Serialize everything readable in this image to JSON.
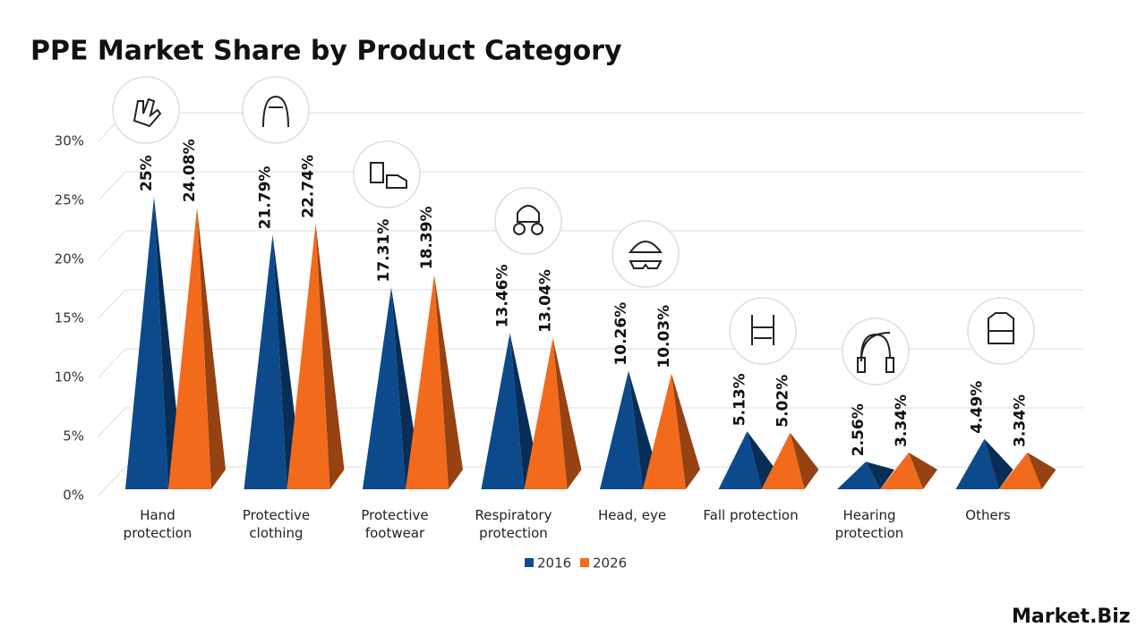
{
  "chart_data": {
    "type": "pyramid-bar",
    "title": "PPE Market Share by Product Category",
    "categories": [
      "Hand\nprotection",
      "Protective\nclothing",
      "Protective\nfootwear",
      "Respiratory\nprotection",
      "Head, eye",
      "Fall protection",
      "Hearing\nprotection",
      "Others"
    ],
    "series": [
      {
        "name": "2016",
        "color": "#0d4a8c",
        "values": [
          25,
          21.79,
          17.31,
          13.46,
          10.26,
          5.13,
          2.56,
          4.49
        ],
        "value_labels": [
          "25%",
          "21.79%",
          "17.31%",
          "13.46%",
          "10.26%",
          "5.13%",
          "2.56%",
          "4.49%"
        ]
      },
      {
        "name": "2026",
        "color": "#f26b1d",
        "values": [
          24.08,
          22.74,
          18.39,
          13.04,
          10.03,
          5.02,
          3.34,
          3.34
        ],
        "value_labels": [
          "24.08%",
          "22.74%",
          "18.39%",
          "13.04%",
          "10.03%",
          "5.02%",
          "3.34%",
          "3.34%"
        ]
      }
    ],
    "ylim": [
      0,
      30
    ],
    "yticks": [
      {
        "value": 0,
        "label": "0%"
      },
      {
        "value": 5,
        "label": "5%"
      },
      {
        "value": 10,
        "label": "10%"
      },
      {
        "value": 15,
        "label": "15%"
      },
      {
        "value": 20,
        "label": "20%"
      },
      {
        "value": 25,
        "label": "25%"
      },
      {
        "value": 30,
        "label": "30%"
      }
    ],
    "grid": true,
    "legend": "bottom",
    "brand": "Market.Biz"
  }
}
